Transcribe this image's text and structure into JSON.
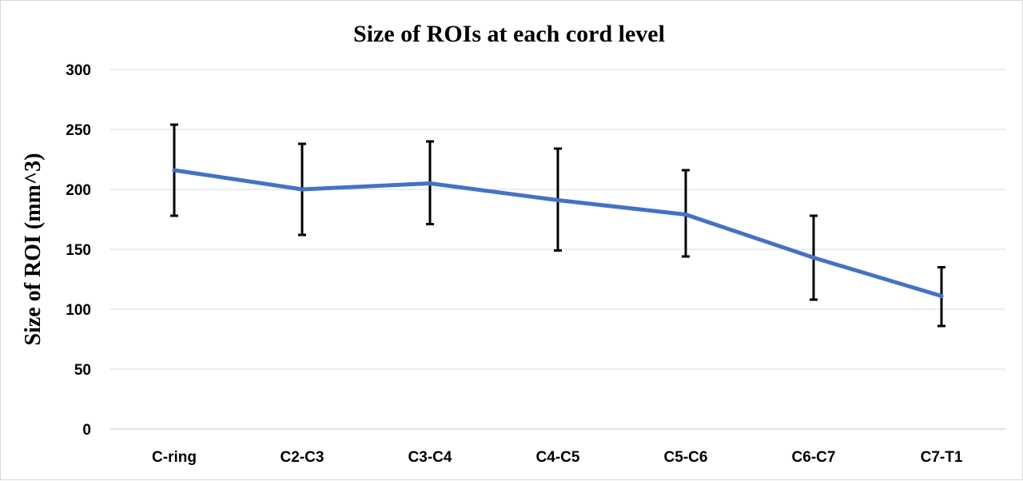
{
  "chart_data": {
    "type": "line",
    "title": "Size of ROIs at each cord level",
    "xlabel": "",
    "ylabel": "Size of ROI (mm^3)",
    "ylim": [
      0,
      300
    ],
    "yticks": [
      0,
      50,
      100,
      150,
      200,
      250,
      300
    ],
    "grid": true,
    "legend": "none",
    "categories": [
      "C-ring",
      "C2-C3",
      "C3-C4",
      "C4-C5",
      "C5-C6",
      "C6-C7",
      "C7-T1"
    ],
    "series": [
      {
        "values": [
          216,
          200,
          205,
          191,
          179,
          143,
          111
        ],
        "error_upper": [
          254,
          238,
          240,
          234,
          216,
          178,
          135
        ],
        "error_lower": [
          178,
          162,
          171,
          149,
          144,
          108,
          86
        ],
        "color": "#4472c4"
      }
    ]
  }
}
